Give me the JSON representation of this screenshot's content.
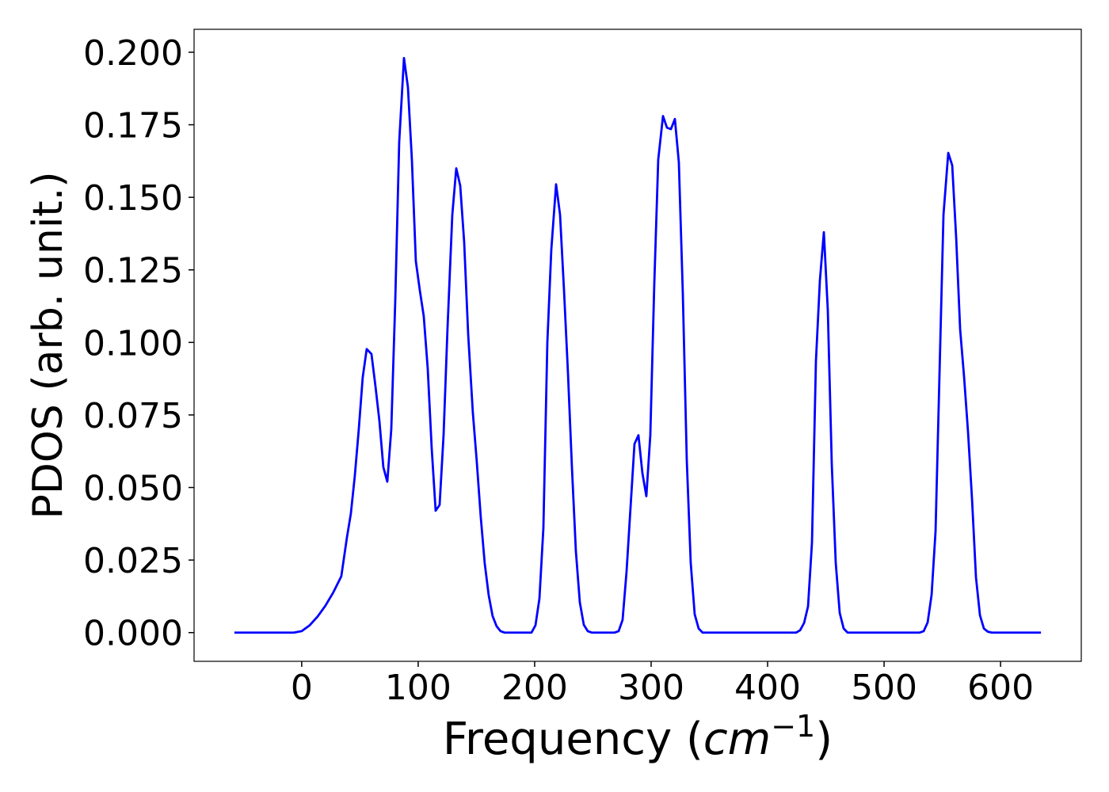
{
  "chart_data": {
    "type": "line",
    "xlabel": [
      "Frequency (",
      "cm",
      "−1",
      ")"
    ],
    "ylabel": "PDOS (arb. unit.)",
    "x": [
      -57.8,
      -6.8,
      0,
      6.8,
      13.6,
      20.4,
      27.2,
      34.0,
      38.8,
      42.2,
      45.6,
      49.0,
      52.4,
      55.8,
      59.9,
      63.3,
      66.7,
      70.1,
      73.5,
      76.9,
      80.3,
      83.7,
      87.8,
      91.2,
      94.6,
      98.0,
      101.4,
      104.8,
      108.2,
      111.6,
      115.0,
      118.4,
      121.8,
      125.2,
      129.3,
      132.7,
      136.1,
      139.5,
      142.9,
      146.9,
      150.3,
      153.7,
      157.1,
      160.5,
      163.9,
      167.3,
      170.7,
      174.1,
      197.3,
      200.7,
      204.1,
      207.5,
      210.9,
      214.3,
      218.4,
      221.8,
      225.2,
      228.6,
      232.0,
      235.4,
      238.8,
      242.2,
      245.6,
      249.0,
      268.7,
      272.1,
      275.5,
      278.9,
      282.3,
      285.7,
      289.1,
      292.5,
      295.9,
      299.3,
      302.7,
      306.1,
      310.2,
      313.6,
      317.0,
      320.4,
      323.8,
      327.2,
      330.6,
      334.0,
      337.4,
      340.8,
      344.2,
      424.5,
      427.9,
      431.3,
      434.7,
      438.1,
      441.5,
      444.9,
      448.3,
      451.7,
      455.1,
      458.5,
      461.9,
      465.3,
      468.7,
      530.6,
      534.0,
      537.4,
      540.8,
      544.2,
      547.6,
      551.0,
      555.1,
      558.5,
      561.9,
      565.3,
      568.7,
      572.1,
      575.5,
      578.9,
      582.3,
      585.7,
      589.1,
      592.5,
      634.7
    ],
    "series": [
      {
        "color": "#0000ff",
        "values": [
          0,
          0,
          0.0005,
          0.0025,
          0.0055,
          0.0093,
          0.0139,
          0.0194,
          0.0327,
          0.041,
          0.054,
          0.07,
          0.088,
          0.0977,
          0.096,
          0.085,
          0.073,
          0.057,
          0.052,
          0.07,
          0.114,
          0.169,
          0.198,
          0.188,
          0.163,
          0.128,
          0.118,
          0.109,
          0.091,
          0.0636,
          0.042,
          0.044,
          0.068,
          0.105,
          0.144,
          0.16,
          0.154,
          0.1345,
          0.103,
          0.076,
          0.059,
          0.04,
          0.024,
          0.013,
          0.0057,
          0.0022,
          0.0005,
          0,
          0,
          0.0025,
          0.0117,
          0.036,
          0.1,
          0.132,
          0.1545,
          0.144,
          0.118,
          0.0895,
          0.057,
          0.028,
          0.0104,
          0.0027,
          0.0005,
          0,
          0,
          0.0005,
          0.0044,
          0.021,
          0.043,
          0.065,
          0.068,
          0.055,
          0.047,
          0.068,
          0.12,
          0.163,
          0.178,
          0.174,
          0.1735,
          0.177,
          0.162,
          0.117,
          0.0595,
          0.024,
          0.0063,
          0.0014,
          0,
          0,
          0.0008,
          0.0033,
          0.009,
          0.031,
          0.0936,
          0.1214,
          0.138,
          0.111,
          0.058,
          0.024,
          0.0068,
          0.0014,
          0,
          0,
          0.0005,
          0.0035,
          0.013,
          0.035,
          0.0895,
          0.144,
          0.1653,
          0.161,
          0.136,
          0.1045,
          0.088,
          0.069,
          0.046,
          0.019,
          0.006,
          0.0014,
          0.0003,
          0,
          0
        ]
      }
    ],
    "xlim": [
      -92.4,
      669.3
    ],
    "ylim": [
      -0.0099,
      0.2079
    ],
    "xticks": [
      0,
      100,
      200,
      300,
      400,
      500,
      600
    ],
    "yticks": [
      {
        "value": 0,
        "label": "0.000"
      },
      {
        "value": 0.025,
        "label": "0.025"
      },
      {
        "value": 0.05,
        "label": "0.050"
      },
      {
        "value": 0.075,
        "label": "0.075"
      },
      {
        "value": 0.1,
        "label": "0.100"
      },
      {
        "value": 0.125,
        "label": "0.125"
      },
      {
        "value": 0.15,
        "label": "0.150"
      },
      {
        "value": 0.175,
        "label": "0.175"
      },
      {
        "value": 0.2,
        "label": "0.200"
      }
    ]
  }
}
